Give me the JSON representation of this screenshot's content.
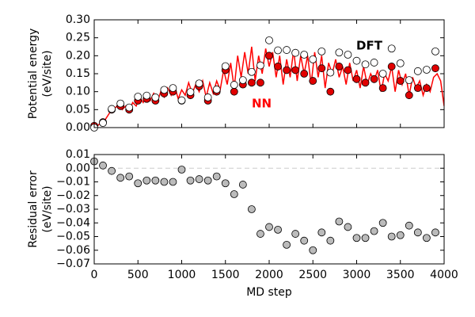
{
  "chart_data": [
    {
      "type": "line",
      "ylabel": [
        "Potential energy",
        "(eV/site)"
      ],
      "annotations": [
        {
          "text": "NN",
          "color": "#ff0000"
        },
        {
          "text": "DFT",
          "color": "#000000"
        }
      ],
      "xlim": [
        0,
        4000
      ],
      "xticks": [
        0,
        500,
        1000,
        1500,
        2000,
        2500,
        3000,
        3500,
        4000
      ],
      "ylim": [
        0,
        0.3
      ],
      "yticks": [
        {
          "value": 0,
          "label": "0.00"
        },
        {
          "value": 0.05,
          "label": "0.05"
        },
        {
          "value": 0.1,
          "label": "0.10"
        },
        {
          "value": 0.15,
          "label": "0.15"
        },
        {
          "value": 0.2,
          "label": "0.20"
        },
        {
          "value": 0.25,
          "label": "0.25"
        },
        {
          "value": 0.3,
          "label": "0.30"
        }
      ],
      "series": [
        {
          "style": "line",
          "color": "#ff0000",
          "x": [
            0,
            40,
            80,
            120,
            160,
            200,
            240,
            280,
            320,
            360,
            400,
            440,
            480,
            520,
            560,
            600,
            640,
            680,
            720,
            760,
            800,
            840,
            880,
            920,
            960,
            1000,
            1040,
            1080,
            1120,
            1160,
            1200,
            1240,
            1280,
            1320,
            1360,
            1400,
            1440,
            1480,
            1520,
            1560,
            1600,
            1640,
            1680,
            1720,
            1760,
            1800,
            1840,
            1880,
            1920,
            1960,
            2000,
            2040,
            2080,
            2120,
            2160,
            2200,
            2240,
            2280,
            2320,
            2360,
            2400,
            2440,
            2480,
            2520,
            2560,
            2600,
            2640,
            2680,
            2720,
            2760,
            2800,
            2840,
            2880,
            2920,
            2960,
            3000,
            3040,
            3080,
            3120,
            3160,
            3200,
            3240,
            3280,
            3320,
            3360,
            3400,
            3440,
            3480,
            3520,
            3560,
            3600,
            3640,
            3680,
            3720,
            3760,
            3800,
            3840,
            3880,
            3920,
            3960,
            4000
          ],
          "values": [
            0.0,
            0.005,
            0.015,
            0.02,
            0.035,
            0.05,
            0.055,
            0.065,
            0.05,
            0.06,
            0.045,
            0.07,
            0.06,
            0.085,
            0.07,
            0.09,
            0.075,
            0.095,
            0.07,
            0.1,
            0.085,
            0.11,
            0.09,
            0.115,
            0.08,
            0.105,
            0.09,
            0.125,
            0.095,
            0.12,
            0.1,
            0.13,
            0.085,
            0.125,
            0.095,
            0.13,
            0.105,
            0.16,
            0.12,
            0.18,
            0.11,
            0.2,
            0.14,
            0.21,
            0.15,
            0.225,
            0.13,
            0.2,
            0.15,
            0.22,
            0.17,
            0.21,
            0.14,
            0.2,
            0.12,
            0.19,
            0.14,
            0.215,
            0.13,
            0.2,
            0.15,
            0.2,
            0.12,
            0.21,
            0.14,
            0.2,
            0.11,
            0.18,
            0.15,
            0.19,
            0.14,
            0.17,
            0.12,
            0.18,
            0.13,
            0.16,
            0.11,
            0.17,
            0.12,
            0.15,
            0.13,
            0.16,
            0.1,
            0.15,
            0.13,
            0.17,
            0.1,
            0.16,
            0.12,
            0.15,
            0.09,
            0.14,
            0.11,
            0.13,
            0.09,
            0.12,
            0.1,
            0.14,
            0.15,
            0.13,
            0.06
          ]
        },
        {
          "style": "filled",
          "color": "#e00000",
          "x": [
            0,
            100,
            200,
            300,
            400,
            500,
            600,
            700,
            800,
            900,
            1000,
            1100,
            1200,
            1300,
            1400,
            1500,
            1600,
            1700,
            1800,
            1900,
            2000,
            2100,
            2200,
            2300,
            2400,
            2500,
            2600,
            2700,
            2800,
            2900,
            3000,
            3100,
            3200,
            3300,
            3400,
            3500,
            3600,
            3700,
            3800,
            3900
          ],
          "values": [
            0.005,
            0.015,
            0.05,
            0.06,
            0.05,
            0.075,
            0.08,
            0.075,
            0.095,
            0.1,
            0.075,
            0.09,
            0.115,
            0.075,
            0.1,
            0.16,
            0.1,
            0.12,
            0.125,
            0.125,
            0.2,
            0.17,
            0.16,
            0.16,
            0.15,
            0.13,
            0.165,
            0.1,
            0.17,
            0.16,
            0.135,
            0.125,
            0.135,
            0.11,
            0.17,
            0.13,
            0.09,
            0.11,
            0.11,
            0.165
          ]
        },
        {
          "style": "open",
          "color": "#ffffff",
          "x": [
            0,
            100,
            200,
            300,
            400,
            500,
            600,
            700,
            800,
            900,
            1000,
            1100,
            1200,
            1300,
            1400,
            1500,
            1600,
            1700,
            1800,
            1900,
            2000,
            2100,
            2200,
            2300,
            2400,
            2500,
            2600,
            2700,
            2800,
            2900,
            3000,
            3100,
            3200,
            3300,
            3400,
            3500,
            3600,
            3700,
            3800,
            3900
          ],
          "values": [
            0.0,
            0.013,
            0.052,
            0.067,
            0.056,
            0.086,
            0.089,
            0.084,
            0.105,
            0.11,
            0.076,
            0.099,
            0.123,
            0.084,
            0.106,
            0.171,
            0.119,
            0.132,
            0.155,
            0.173,
            0.243,
            0.215,
            0.216,
            0.208,
            0.203,
            0.19,
            0.212,
            0.153,
            0.209,
            0.203,
            0.186,
            0.176,
            0.181,
            0.15,
            0.22,
            0.179,
            0.132,
            0.157,
            0.161,
            0.212
          ]
        }
      ]
    },
    {
      "type": "scatter",
      "xlabel": "MD step",
      "ylabel": [
        "Residual error",
        "(eV/site)"
      ],
      "xlim": [
        0,
        4000
      ],
      "xticks": [
        0,
        500,
        1000,
        1500,
        2000,
        2500,
        3000,
        3500,
        4000
      ],
      "ylim": [
        -0.07,
        0.01
      ],
      "yticks": [
        {
          "value": 0.01,
          "label": "0.01"
        },
        {
          "value": 0,
          "label": "0.00"
        },
        {
          "value": -0.01,
          "label": "−0.01"
        },
        {
          "value": -0.02,
          "label": "−0.02"
        },
        {
          "value": -0.03,
          "label": "−0.03"
        },
        {
          "value": -0.04,
          "label": "−0.04"
        },
        {
          "value": -0.05,
          "label": "−0.05"
        },
        {
          "value": -0.06,
          "label": "−0.06"
        },
        {
          "value": -0.07,
          "label": "−0.07"
        }
      ],
      "series": [
        {
          "style": "filled",
          "color": "#bbbbbb",
          "x": [
            0,
            100,
            200,
            300,
            400,
            500,
            600,
            700,
            800,
            900,
            1000,
            1100,
            1200,
            1300,
            1400,
            1500,
            1600,
            1700,
            1800,
            1900,
            2000,
            2100,
            2200,
            2300,
            2400,
            2500,
            2600,
            2700,
            2800,
            2900,
            3000,
            3100,
            3200,
            3300,
            3400,
            3500,
            3600,
            3700,
            3800,
            3900
          ],
          "values": [
            0.005,
            0.002,
            -0.002,
            -0.007,
            -0.006,
            -0.011,
            -0.009,
            -0.009,
            -0.01,
            -0.01,
            -0.001,
            -0.009,
            -0.008,
            -0.009,
            -0.006,
            -0.011,
            -0.019,
            -0.012,
            -0.03,
            -0.048,
            -0.043,
            -0.045,
            -0.056,
            -0.048,
            -0.053,
            -0.06,
            -0.047,
            -0.053,
            -0.039,
            -0.043,
            -0.051,
            -0.051,
            -0.046,
            -0.04,
            -0.05,
            -0.049,
            -0.042,
            -0.047,
            -0.051,
            -0.047
          ]
        }
      ]
    }
  ]
}
